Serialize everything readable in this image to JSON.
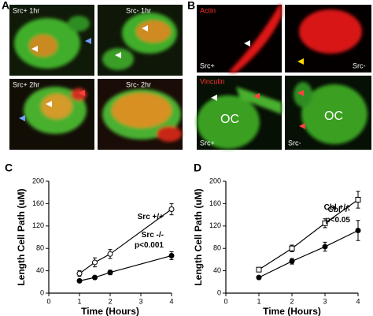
{
  "panel_labels": [
    "A",
    "B",
    "C",
    "D"
  ],
  "panel_a": {
    "captions": [
      "Src+ 1hr",
      "Src- 1hr",
      "Src+ 2hr",
      "Src- 2hr"
    ]
  },
  "panel_b": {
    "stain_top": "Actin",
    "stain_bottom": "Vinculin",
    "genotypes": [
      "Src+",
      "Src-",
      "Src+",
      "Src-"
    ],
    "cell_labels": [
      "OC",
      "OC"
    ]
  },
  "chart_data": [
    {
      "type": "line",
      "xlabel": "Time (Hours)",
      "ylabel": "Length Cell Path (uM)",
      "xlim": [
        0,
        4
      ],
      "xticks": [
        0,
        1,
        2,
        3,
        4
      ],
      "ylim": [
        0,
        200
      ],
      "yticks": [
        0,
        40,
        80,
        120,
        160,
        200
      ],
      "series": [
        {
          "name": "Src +/+",
          "color": "#000000",
          "marker": "open-circle",
          "x": [
            1,
            1.5,
            2,
            4
          ],
          "values": [
            35,
            55,
            70,
            150
          ],
          "errors": [
            5,
            8,
            8,
            10
          ]
        },
        {
          "name": "Src -/-",
          "color": "#000000",
          "marker": "filled-circle",
          "x": [
            1,
            1.5,
            2,
            4
          ],
          "values": [
            22,
            28,
            37,
            67
          ],
          "errors": [
            3,
            3,
            4,
            7
          ]
        }
      ],
      "annotation": "p<0.001"
    },
    {
      "type": "line",
      "xlabel": "Time (Hours)",
      "ylabel": "Length Cell Path (uM)",
      "xlim": [
        0,
        4
      ],
      "xticks": [
        0,
        1,
        2,
        3,
        4
      ],
      "ylim": [
        0,
        200
      ],
      "yticks": [
        0,
        40,
        80,
        120,
        160,
        200
      ],
      "series": [
        {
          "name": "Cbl +/+",
          "color": "#000000",
          "marker": "open-square",
          "x": [
            1,
            2,
            3,
            4
          ],
          "values": [
            42,
            80,
            125,
            167
          ],
          "errors": [
            4,
            6,
            8,
            15
          ]
        },
        {
          "name": "Cbl -/-",
          "color": "#000000",
          "marker": "filled-circle",
          "x": [
            1,
            2,
            3,
            4
          ],
          "values": [
            28,
            57,
            83,
            112
          ],
          "errors": [
            3,
            5,
            8,
            18
          ]
        }
      ],
      "annotation": "p<0.05"
    }
  ]
}
